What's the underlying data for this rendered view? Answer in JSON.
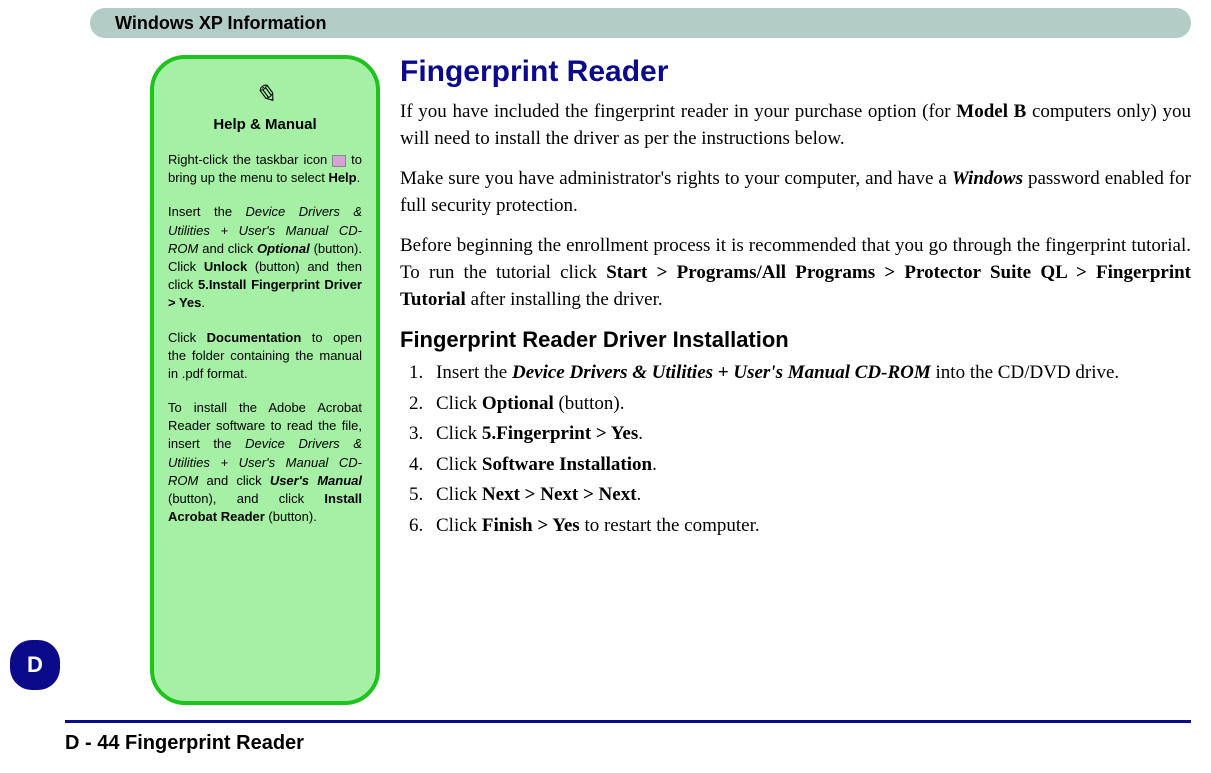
{
  "header": {
    "title": "Windows XP Information"
  },
  "sidetab": {
    "label": "D"
  },
  "callout": {
    "pencil_glyph": "✎",
    "title": "Help & Manual",
    "p1a": "Right-click the taskbar icon ",
    "p1b": " to bring up the menu to select ",
    "p1c": "Help",
    "p1d": ".",
    "p2a": "Insert the ",
    "p2b": "Device Drivers & Utilities + User's Manual CD-ROM",
    "p2c": " and click ",
    "p2d": "Option­al",
    "p2e": " (button). Click ",
    "p2f": "Unlock",
    "p2g": " (button) and then click ",
    "p2h": "5.In­stall Fingerprint Driver > Yes",
    "p2i": ".",
    "p3a": "Click ",
    "p3b": "Documentation",
    "p3c": " to open the folder containing the manual in .pdf format.",
    "p4a": "To install the Adobe Acrobat Reader software to read the file, insert the ",
    "p4b": "Device Driv­ers & Utilities + User's Man­ual CD-ROM",
    "p4c": " and click ",
    "p4d": "User's Manual",
    "p4e": " (button), and click ",
    "p4f": "Install Acrobat Reader",
    "p4g": " (button)."
  },
  "main": {
    "heading": "Fingerprint Reader",
    "para1a": "If you have included the fingerprint reader in your purchase option (for ",
    "para1b": "Model B",
    "para1c": " computers only) you will need to install the driver as per the instructions below.",
    "para2a": "Make sure you have administrator's rights to your computer, and have a ",
    "para2b": "Windows",
    "para2c": " password enabled for full security protection.",
    "para3a": "Before beginning the enrollment process it is recommended that you go through the fingerprint tutorial. To run the tutorial click ",
    "para3b": "Start > Programs/All Programs > Pro­tector Suite QL > Fingerprint Tutorial",
    "para3c": " after installing the driver.",
    "subheading": "Fingerprint Reader Driver Installation",
    "steps": {
      "s1a": "Insert the ",
      "s1b": "Device Drivers & Utilities + User's Manual CD-ROM",
      "s1c": " into the CD/DVD drive.",
      "s2a": "Click ",
      "s2b": "Optional",
      "s2c": " (button).",
      "s3a": "Click ",
      "s3b": "5.Fingerprint > Yes",
      "s3c": ".",
      "s4a": "Click ",
      "s4b": "Software Installation",
      "s4c": ".",
      "s5a": "Click ",
      "s5b": "Next > Next > Next",
      "s5c": ".",
      "s6a": "Click ",
      "s6b": "Finish > Yes",
      "s6c": " to restart the computer."
    }
  },
  "footer": {
    "page_ref": "D - 44",
    "page_title": "Fingerprint Reader"
  },
  "colors": {
    "header_bg": "#b3ccc5",
    "accent_blue": "#0a0a8b",
    "callout_bg": "#a5f0a5",
    "callout_border": "#1ec31e"
  }
}
